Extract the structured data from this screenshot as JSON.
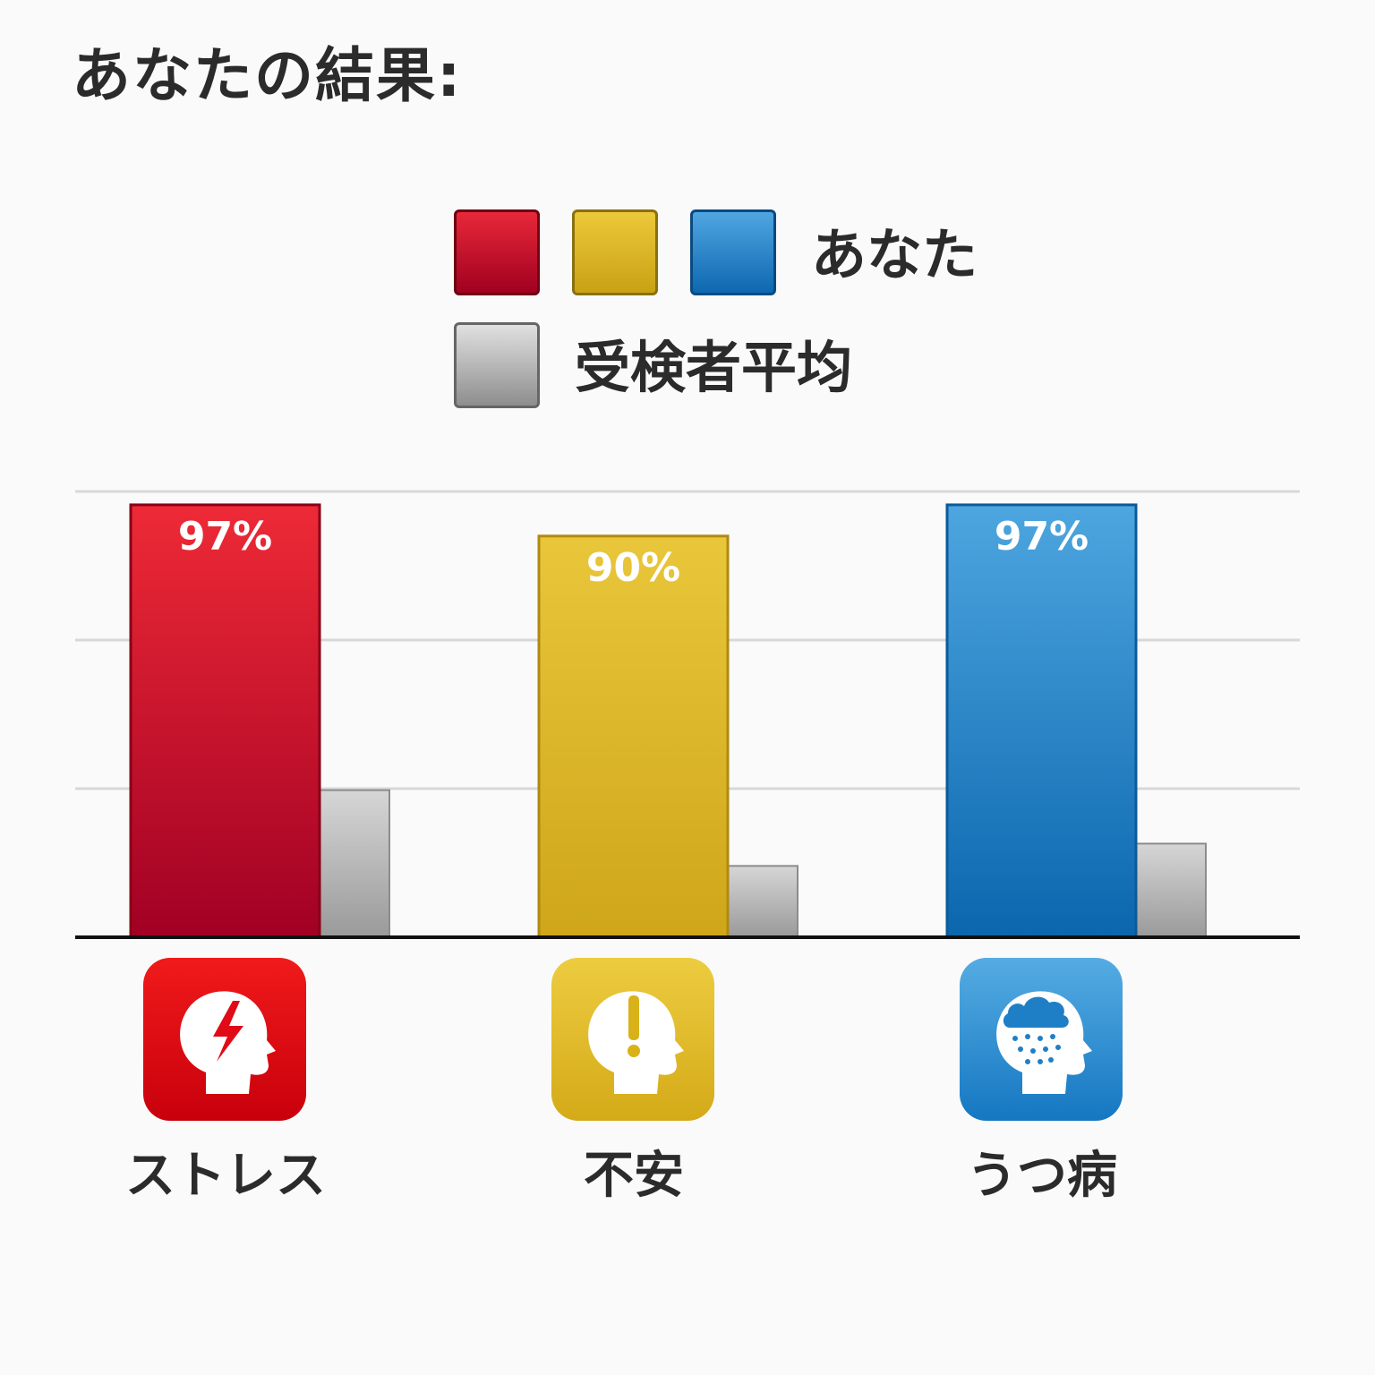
{
  "title": "あなたの結果:",
  "legend": {
    "you_label": "あなた",
    "average_label": "受検者平均"
  },
  "colors": {
    "stress": "#c8102e",
    "anxiety": "#d9b21a",
    "depression": "#1f7fc6",
    "average": "#b5b5b5"
  },
  "categories": [
    {
      "label": "ストレス",
      "icon": "stress-head-lightning-icon"
    },
    {
      "label": "不安",
      "icon": "anxiety-head-exclamation-icon"
    },
    {
      "label": "うつ病",
      "icon": "depression-head-raincloud-icon"
    }
  ],
  "chart_data": {
    "type": "bar",
    "categories": [
      "ストレス",
      "不安",
      "うつ病"
    ],
    "series": [
      {
        "name": "あなた",
        "values": [
          97,
          90,
          97
        ],
        "labels": [
          "97%",
          "90%",
          "97%"
        ]
      },
      {
        "name": "受検者平均",
        "values": [
          33,
          16,
          21
        ]
      }
    ],
    "ylim": [
      0,
      100
    ],
    "grid": true,
    "legend_position": "top"
  }
}
